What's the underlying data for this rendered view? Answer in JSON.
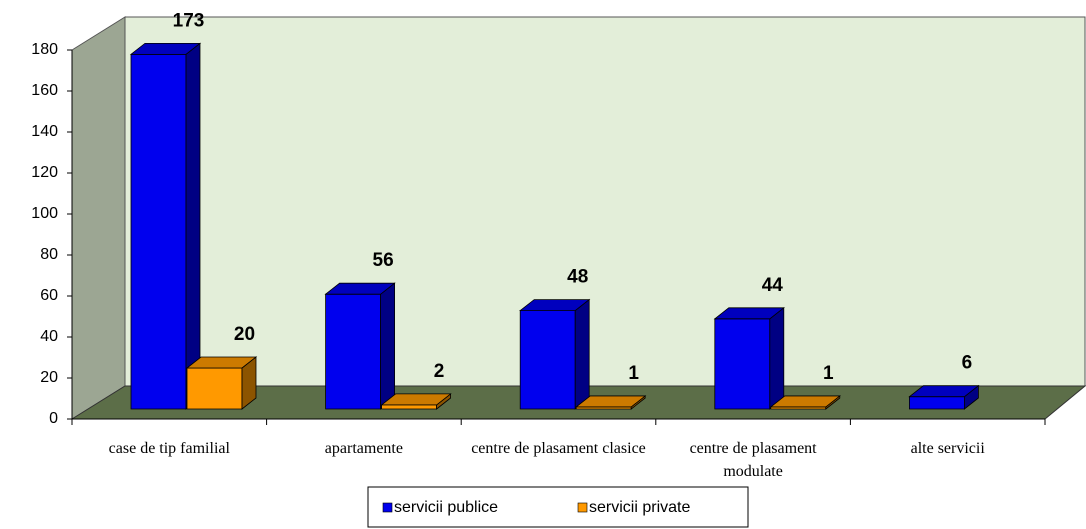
{
  "chart_data": {
    "type": "bar3d",
    "categories": [
      "case de tip familial",
      "apartamente",
      "centre de plasament clasice",
      "centre de plasament modulate",
      "alte servicii"
    ],
    "series": [
      {
        "name": "servicii publice",
        "color": "#0000ee",
        "values": [
          173,
          56,
          48,
          44,
          6
        ]
      },
      {
        "name": "servicii private",
        "color": "#ff9900",
        "values": [
          20,
          2,
          1,
          1,
          null
        ]
      }
    ],
    "ylim": [
      0,
      180
    ],
    "yticks": [
      0,
      20,
      40,
      60,
      80,
      100,
      120,
      140,
      160,
      180
    ]
  }
}
